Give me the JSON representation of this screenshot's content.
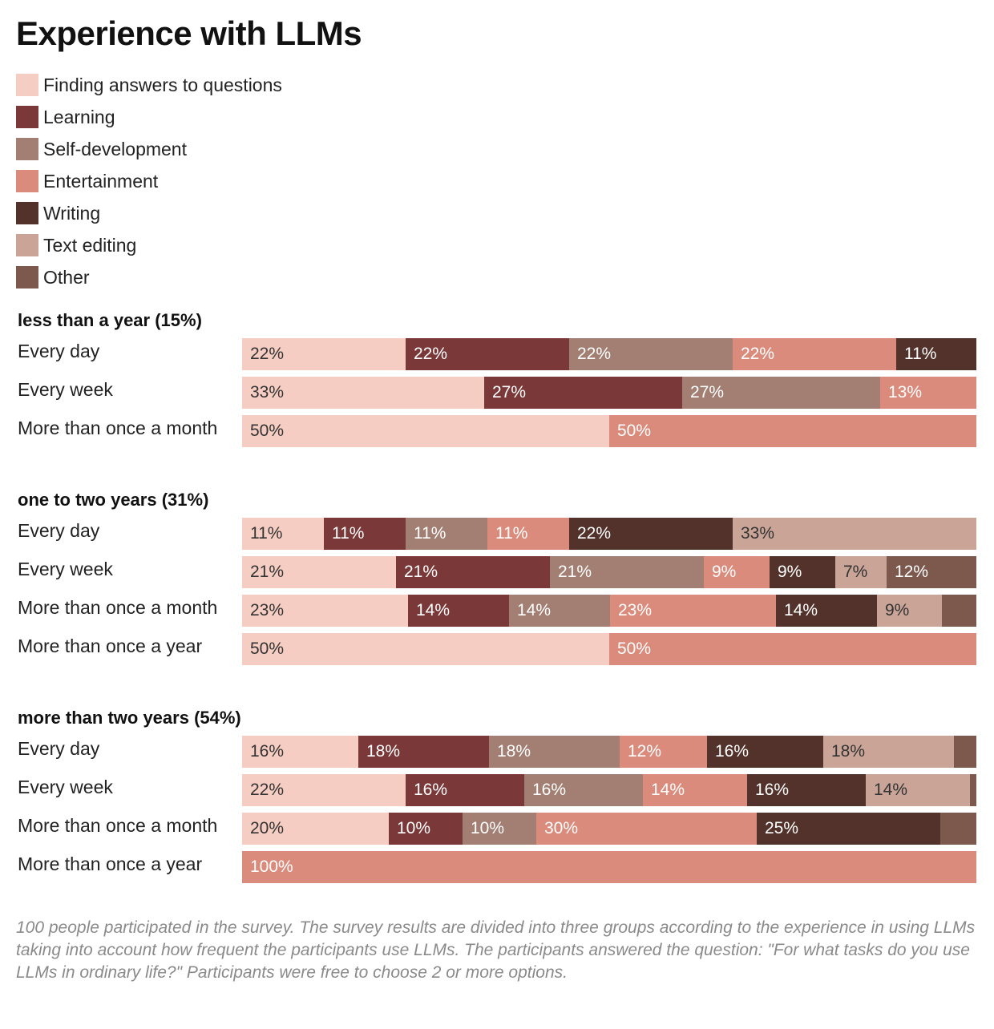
{
  "title": "Experience with LLMs",
  "chart_data": {
    "type": "bar",
    "orientation": "horizontal",
    "stacked": true,
    "series": [
      {
        "name": "Finding answers to questions",
        "color": "#f6cdc2"
      },
      {
        "name": "Learning",
        "color": "#7a3838"
      },
      {
        "name": "Self-development",
        "color": "#a27f72"
      },
      {
        "name": "Entertainment",
        "color": "#db8b7b"
      },
      {
        "name": "Writing",
        "color": "#52322a"
      },
      {
        "name": "Text editing",
        "color": "#c9a497"
      },
      {
        "name": "Other",
        "color": "#7d584d"
      }
    ],
    "groups": [
      {
        "title": "less than a year (15%)",
        "rows": [
          {
            "label": "Every day",
            "values": [
              22,
              22,
              22,
              22,
              11,
              0,
              0
            ],
            "labels": [
              "22%",
              "22%",
              "22%",
              "22%",
              "11%",
              "",
              ""
            ]
          },
          {
            "label": "Every week",
            "values": [
              33,
              27,
              27,
              13,
              0,
              0,
              0
            ],
            "labels": [
              "33%",
              "27%",
              "27%",
              "13%",
              "",
              "",
              ""
            ]
          },
          {
            "label": "More than once a month",
            "values": [
              50,
              0,
              0,
              50,
              0,
              0,
              0
            ],
            "labels": [
              "50%",
              "",
              "",
              "50%",
              "",
              "",
              ""
            ]
          }
        ]
      },
      {
        "title": "one to two years (31%)",
        "rows": [
          {
            "label": "Every day",
            "values": [
              11,
              11,
              11,
              11,
              22,
              33,
              0
            ],
            "labels": [
              "11%",
              "11%",
              "11%",
              "11%",
              "22%",
              "33%",
              ""
            ]
          },
          {
            "label": "Every week",
            "values": [
              21,
              21,
              21,
              9,
              9,
              7,
              12
            ],
            "labels": [
              "21%",
              "21%",
              "21%",
              "9%",
              "9%",
              "7%",
              "12%"
            ]
          },
          {
            "label": "More than once a month",
            "values": [
              23,
              14,
              14,
              23,
              14,
              9,
              5
            ],
            "labels": [
              "23%",
              "14%",
              "14%",
              "23%",
              "14%",
              "9%",
              ""
            ]
          },
          {
            "label": "More than once a year",
            "values": [
              50,
              0,
              0,
              50,
              0,
              0,
              0
            ],
            "labels": [
              "50%",
              "",
              "",
              "50%",
              "",
              "",
              ""
            ]
          }
        ]
      },
      {
        "title": "more than two years (54%)",
        "rows": [
          {
            "label": "Every day",
            "values": [
              16,
              18,
              18,
              12,
              16,
              18,
              3
            ],
            "labels": [
              "16%",
              "18%",
              "18%",
              "12%",
              "16%",
              "18%",
              ""
            ]
          },
          {
            "label": "Every week",
            "values": [
              22,
              16,
              16,
              14,
              16,
              14,
              1
            ],
            "labels": [
              "22%",
              "16%",
              "16%",
              "14%",
              "16%",
              "14%",
              ""
            ]
          },
          {
            "label": "More than once a month",
            "values": [
              20,
              10,
              10,
              30,
              25,
              0,
              5
            ],
            "labels": [
              "20%",
              "10%",
              "10%",
              "30%",
              "25%",
              "",
              ""
            ]
          },
          {
            "label": "More than once a year",
            "values": [
              0,
              0,
              0,
              100,
              0,
              0,
              0
            ],
            "labels": [
              "",
              "",
              "",
              "100%",
              "",
              "",
              ""
            ]
          }
        ]
      }
    ]
  },
  "footnote": "100 people participated in the survey. The survey results are divided into three groups according to the experience in using LLMs taking into account how frequent the participants use LLMs. The participants answered the question: \"For what tasks do you use LLMs in ordinary life?\" Participants were free to choose 2 or more options."
}
